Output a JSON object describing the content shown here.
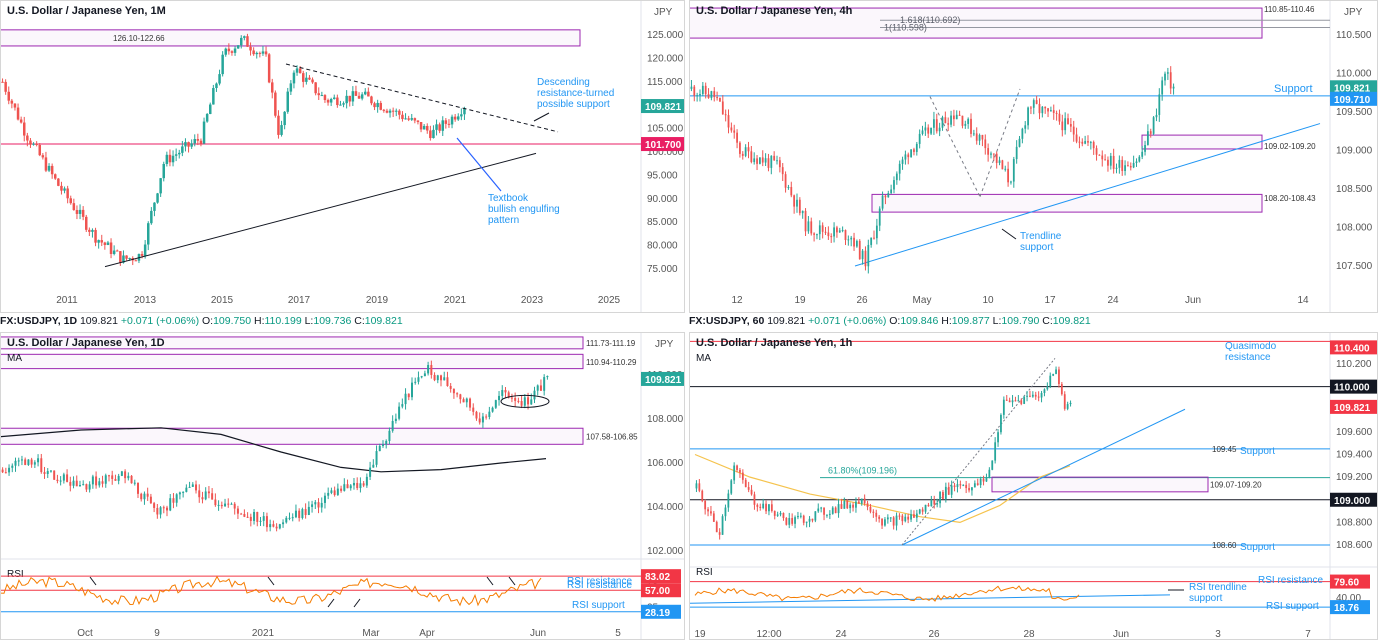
{
  "colors": {
    "up": "#26a69a",
    "down": "#ef5350",
    "zone": "#9c27b0",
    "pink": "#e91e63",
    "blue": "#2196f3",
    "annot": "#2962ff",
    "rsi": "#f57c00",
    "teal": "#26a69a",
    "grid": "#f0f3fa",
    "red": "#f23645"
  },
  "bars": {
    "daily": {
      "symbol": "FX:USDJPY, 1D",
      "price": "109.821",
      "change": "+0.071 (+0.06%)",
      "o": "109.750",
      "h": "110.199",
      "l": "109.736",
      "c": "109.821"
    },
    "hourly": {
      "symbol": "FX:USDJPY, 60",
      "price": "109.821",
      "change": "+0.071 (+0.06%)",
      "o": "109.846",
      "h": "109.877",
      "l": "109.790",
      "c": "109.821"
    }
  },
  "chart_data": [
    {
      "type": "candlestick",
      "title": "U.S. Dollar / Japanese Yen, 1M",
      "currency": "JPY",
      "x_ticks": [
        "2011",
        "2013",
        "2015",
        "2017",
        "2019",
        "2021",
        "2023",
        "2025"
      ],
      "y_ticks": [
        "125.000",
        "120.000",
        "115.000",
        "110.000",
        "105.000",
        "100.000",
        "95.000",
        "90.000",
        "85.000",
        "80.000",
        "75.000"
      ],
      "ylim": [
        72,
        128
      ],
      "price_labels": [
        {
          "text": "109.821",
          "value": 109.821,
          "color": "#26a69a"
        },
        {
          "text": "101.700",
          "value": 101.7,
          "color": "#e91e63"
        }
      ],
      "zones": [
        {
          "label": "126.10-122.66",
          "low": 122.66,
          "high": 126.1
        }
      ],
      "levels": [
        {
          "value": 101.7,
          "color": "#e91e63"
        }
      ],
      "annotations": [
        {
          "lines": [
            "Descending",
            "resistance-turned",
            "possible support"
          ]
        },
        {
          "lines": [
            "Textbook",
            "bullish engulfing",
            "pattern"
          ]
        }
      ]
    },
    {
      "type": "candlestick",
      "title": "U.S. Dollar / Japanese Yen, 4h",
      "currency": "JPY",
      "x_ticks": [
        "12",
        "19",
        "26",
        "May",
        "10",
        "17",
        "24",
        "Jun",
        "14"
      ],
      "y_ticks": [
        "110.500",
        "110.000",
        "109.500",
        "109.000",
        "108.500",
        "108.000",
        "107.500"
      ],
      "ylim": [
        107.3,
        110.85
      ],
      "price_labels": [
        {
          "text": "109.821",
          "value": 109.821,
          "color": "#26a69a"
        },
        {
          "text": "109.710",
          "value": 109.71,
          "color": "#2196f3"
        }
      ],
      "zones": [
        {
          "label": "110.85-110.46",
          "low": 110.46,
          "high": 110.85
        },
        {
          "label": "109.02-109.20",
          "low": 109.02,
          "high": 109.2
        },
        {
          "label": "108.20-108.43",
          "low": 108.2,
          "high": 108.43
        }
      ],
      "fibs": [
        {
          "label": "1.618(110.692)",
          "value": 110.692
        },
        {
          "label": "1(110.598)",
          "value": 110.598
        }
      ],
      "levels": [
        {
          "label": "Support",
          "value": 109.71
        }
      ],
      "annotations": [
        {
          "lines": [
            "Trendline",
            "support"
          ]
        }
      ]
    },
    {
      "type": "candlestick",
      "title": "U.S. Dollar / Japanese Yen, 1D",
      "currency": "JPY",
      "indicator": "MA",
      "x_ticks": [
        "Oct",
        "9",
        "2021",
        "Mar",
        "Apr",
        "Jun",
        "5"
      ],
      "y_ticks": [
        "110.000",
        "108.000",
        "106.000",
        "104.000",
        "102.000"
      ],
      "ylim": [
        101.5,
        112.0
      ],
      "price_labels": [
        {
          "text": "109.821",
          "value": 109.821,
          "color": "#26a69a"
        }
      ],
      "zones": [
        {
          "label": "111.73-111.19",
          "low": 111.19,
          "high": 111.73
        },
        {
          "label": "110.94-110.29",
          "low": 110.29,
          "high": 110.94
        },
        {
          "label": "107.58-106.85",
          "low": 106.85,
          "high": 107.58
        }
      ],
      "rsi": {
        "label": "RSI",
        "levels": [
          {
            "text": "83.02",
            "value": 83.02,
            "color": "#f23645"
          },
          {
            "text": "57.00",
            "value": 57,
            "color": "#f23645"
          },
          {
            "text": "28.19",
            "value": 28.19,
            "color": "#2196f3"
          }
        ],
        "ticks": [
          "75",
          "50",
          "25"
        ],
        "notes": [
          "RSI resistance",
          "RSI resistance",
          "RSI support"
        ]
      }
    },
    {
      "type": "candlestick",
      "title": "U.S. Dollar / Japanese Yen, 1h",
      "currency": "JPY",
      "indicator": "MA",
      "x_ticks": [
        "19",
        "12:00",
        "24",
        "26",
        "28",
        "Jun",
        "3",
        "7"
      ],
      "y_ticks": [
        "110.200",
        "110.000",
        "109.800",
        "109.600",
        "109.400",
        "109.200",
        "109.000",
        "108.800",
        "108.600"
      ],
      "ylim": [
        108.45,
        110.4
      ],
      "price_labels": [
        {
          "text": "110.400",
          "value": 110.4,
          "color": "#f23645"
        },
        {
          "text": "110.000",
          "value": 110.0,
          "color": "#131722"
        },
        {
          "text": "109.821",
          "value": 109.821,
          "color": "#f23645"
        },
        {
          "text": "109.000",
          "value": 109.0,
          "color": "#131722"
        }
      ],
      "zones": [
        {
          "label": "109.07-109.20",
          "low": 109.07,
          "high": 109.2
        }
      ],
      "fibs": [
        {
          "label": "61.80%(109.196)",
          "value": 109.196
        }
      ],
      "levels": [
        {
          "label": "Support",
          "value": 109.45
        },
        {
          "label": "Support",
          "value": 108.6
        }
      ],
      "annotations": [
        {
          "lines": [
            "Quasimodo",
            "resistance"
          ]
        }
      ],
      "rsi": {
        "label": "RSI",
        "levels": [
          {
            "text": "79.60",
            "value": 79.6,
            "color": "#f23645"
          },
          {
            "text": "18.76",
            "value": 18.76,
            "color": "#2196f3"
          }
        ],
        "ticks": [
          "40.00"
        ],
        "notes": [
          "RSI trendline",
          "support",
          "RSI resistance",
          "RSI support"
        ]
      }
    }
  ]
}
